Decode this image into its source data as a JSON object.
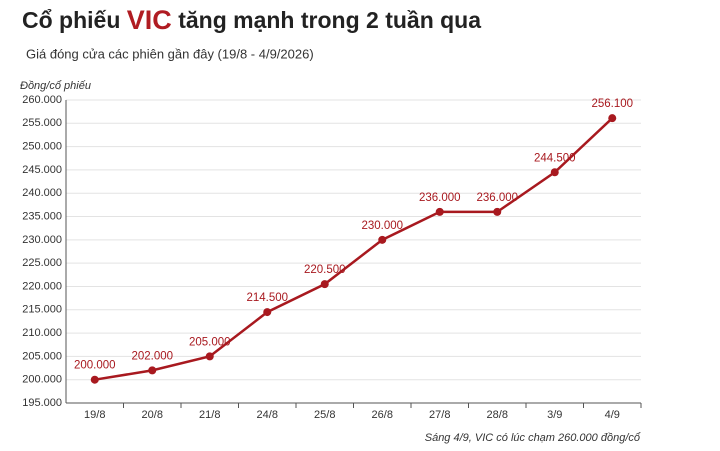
{
  "chart_data": {
    "type": "line",
    "title": {
      "before": "Cổ phiếu",
      "highlight": "VIC",
      "after": "tăng mạnh trong 2 tuần qua"
    },
    "subtitle": "Giá đóng cửa các phiên gần đây (19/8 - 4/9/2026)",
    "y_label": "Đồng/cổ phiếu",
    "note": "Sáng 4/9, VIC có lúc chạm 260.000 đồng/cổ",
    "categories": [
      "19/8",
      "20/8",
      "21/8",
      "24/8",
      "25/8",
      "26/8",
      "27/8",
      "28/8",
      "3/9",
      "4/9"
    ],
    "values": [
      200000,
      202000,
      205000,
      214500,
      220500,
      230000,
      236000,
      236000,
      244500,
      256100
    ],
    "value_labels": [
      "200.000",
      "202.000",
      "205.000",
      "214.500",
      "220.500",
      "230.000",
      "236.000",
      "236.000",
      "244.500",
      "256.100"
    ],
    "color": "#a8191f",
    "ylim": [
      195000,
      260000
    ],
    "yticks": [
      {
        "value": 195000,
        "label": "195.000"
      },
      {
        "value": 200000,
        "label": "200.000"
      },
      {
        "value": 205000,
        "label": "205.000"
      },
      {
        "value": 210000,
        "label": "210.000"
      },
      {
        "value": 215000,
        "label": "215.000"
      },
      {
        "value": 220000,
        "label": "220.000"
      },
      {
        "value": 225000,
        "label": "225.000"
      },
      {
        "value": 230000,
        "label": "230.000"
      },
      {
        "value": 235000,
        "label": "235.000"
      },
      {
        "value": 240000,
        "label": "240.000"
      },
      {
        "value": 245000,
        "label": "245.000"
      },
      {
        "value": 250000,
        "label": "250.000"
      },
      {
        "value": 255000,
        "label": "255.000"
      },
      {
        "value": 260000,
        "label": "260.000"
      }
    ],
    "grid": true
  }
}
